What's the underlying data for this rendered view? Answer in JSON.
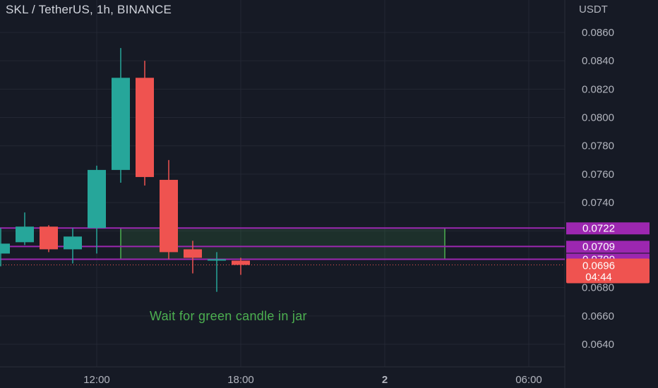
{
  "header": {
    "symbol_title": "SKL / TetherUS, 1h, BINANCE",
    "currency": "USDT"
  },
  "annotation": {
    "text": "Wait for green candle in jar"
  },
  "colors": {
    "background": "#161a25",
    "grid": "#232733",
    "up": "#26a69a",
    "down": "#ef5350",
    "level_line": "#9c27b0",
    "level_badge": "#9c27b0",
    "zone_border": "#4caf50",
    "zone_fill": "#4caf50",
    "axis_text": "#b2b5be",
    "annotation": "#4caf50"
  },
  "price_badge": {
    "price": "0.0696",
    "countdown": "04:44"
  },
  "chart_data": {
    "type": "candlestick",
    "title": "SKL / TetherUS, 1h, BINANCE",
    "ylabel": "USDT",
    "ylim": [
      0.063,
      0.087
    ],
    "y_ticks": [
      "0.0860",
      "0.0840",
      "0.0820",
      "0.0800",
      "0.0780",
      "0.0760",
      "0.0740",
      "0.0680",
      "0.0660",
      "0.0640"
    ],
    "x_ticks": [
      {
        "label": "12:00",
        "hour": 12
      },
      {
        "label": "18:00",
        "hour": 18
      },
      {
        "label": "2",
        "hour": 24
      },
      {
        "label": "06:00",
        "hour": 30
      }
    ],
    "grid": true,
    "candles": [
      {
        "hour": 8,
        "open": 0.0704,
        "high": 0.0722,
        "low": 0.0695,
        "close": 0.0711
      },
      {
        "hour": 9,
        "open": 0.0712,
        "high": 0.0733,
        "low": 0.071,
        "close": 0.0723
      },
      {
        "hour": 10,
        "open": 0.0723,
        "high": 0.0724,
        "low": 0.0705,
        "close": 0.0707
      },
      {
        "hour": 11,
        "open": 0.0707,
        "high": 0.0722,
        "low": 0.0697,
        "close": 0.0716
      },
      {
        "hour": 12,
        "open": 0.0722,
        "high": 0.0766,
        "low": 0.0704,
        "close": 0.0763
      },
      {
        "hour": 13,
        "open": 0.0763,
        "high": 0.0849,
        "low": 0.0754,
        "close": 0.0828
      },
      {
        "hour": 14,
        "open": 0.0828,
        "high": 0.084,
        "low": 0.0752,
        "close": 0.0758
      },
      {
        "hour": 15,
        "open": 0.0756,
        "high": 0.077,
        "low": 0.07,
        "close": 0.0705
      },
      {
        "hour": 16,
        "open": 0.0707,
        "high": 0.0713,
        "low": 0.069,
        "close": 0.0701
      },
      {
        "hour": 17,
        "open": 0.0699,
        "high": 0.0705,
        "low": 0.0677,
        "close": 0.07
      },
      {
        "hour": 18,
        "open": 0.0699,
        "high": 0.0701,
        "low": 0.0689,
        "close": 0.0696
      }
    ],
    "levels": [
      {
        "price": 0.0722,
        "label": "0.0722"
      },
      {
        "price": 0.0709,
        "label": "0.0709"
      },
      {
        "price": 0.07,
        "label": "0.0700"
      }
    ],
    "zone": {
      "from_hour": 13,
      "to_hour": 26.5,
      "top": 0.0722,
      "bottom": 0.07
    },
    "last_price": 0.0696
  }
}
